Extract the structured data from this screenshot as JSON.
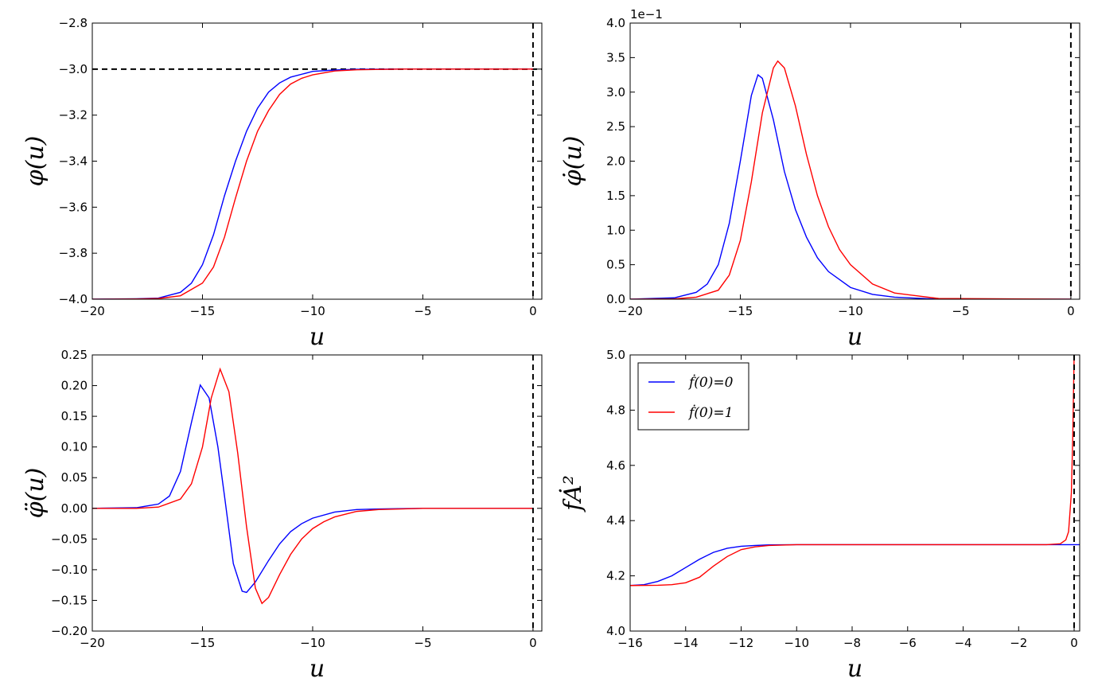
{
  "chart_data": [
    {
      "id": "a",
      "type": "line",
      "xlabel": "u",
      "ylabel": "φ(u)",
      "xlim": [
        -20,
        0.4
      ],
      "ylim": [
        -4.0,
        -2.8
      ],
      "xticks": [
        -20,
        -15,
        -10,
        -5,
        0
      ],
      "xtick_labels": [
        "−20",
        "−15",
        "−10",
        "−5",
        "0"
      ],
      "yticks": [
        -4.0,
        -3.8,
        -3.6,
        -3.4,
        -3.2,
        -3.0,
        -2.8
      ],
      "ytick_labels": [
        "−4.0",
        "−3.8",
        "−3.6",
        "−3.4",
        "−3.2",
        "−3.0",
        "−2.8"
      ],
      "series": [
        {
          "color": "#0000ff",
          "x": [
            -20,
            -18,
            -17,
            -16,
            -15.5,
            -15,
            -14.5,
            -14,
            -13.5,
            -13,
            -12.5,
            -12,
            -11.5,
            -11,
            -10,
            -9,
            -8,
            -6,
            -4,
            0
          ],
          "y": [
            -4.0,
            -3.998,
            -3.995,
            -3.97,
            -3.93,
            -3.85,
            -3.72,
            -3.55,
            -3.4,
            -3.27,
            -3.17,
            -3.1,
            -3.06,
            -3.035,
            -3.01,
            -3.004,
            -3.001,
            -3.0,
            -3.0,
            -3.0
          ]
        },
        {
          "color": "#ff0000",
          "x": [
            -20,
            -18,
            -17,
            -16,
            -15,
            -14.5,
            -14,
            -13.5,
            -13,
            -12.5,
            -12,
            -11.5,
            -11,
            -10.5,
            -10,
            -9,
            -8,
            -6,
            -4,
            0
          ],
          "y": [
            -4.0,
            -3.999,
            -3.997,
            -3.985,
            -3.93,
            -3.86,
            -3.73,
            -3.56,
            -3.4,
            -3.27,
            -3.18,
            -3.11,
            -3.065,
            -3.04,
            -3.025,
            -3.008,
            -3.003,
            -3.0,
            -3.0,
            -3.0
          ]
        }
      ],
      "hlines": [
        -3.0
      ],
      "vlines": [
        0
      ]
    },
    {
      "id": "b",
      "type": "line",
      "xlabel": "u",
      "ylabel": "φ̇(u)",
      "offset_text": "1e−1",
      "xlim": [
        -20,
        0.4
      ],
      "ylim": [
        0,
        4.0
      ],
      "xticks": [
        -20,
        -15,
        -10,
        -5,
        0
      ],
      "xtick_labels": [
        "−20",
        "−15",
        "−10",
        "−5",
        "0"
      ],
      "yticks": [
        0,
        0.5,
        1.0,
        1.5,
        2.0,
        2.5,
        3.0,
        3.5,
        4.0
      ],
      "ytick_labels": [
        "0.0",
        "0.5",
        "1.0",
        "1.5",
        "2.0",
        "2.5",
        "3.0",
        "3.5",
        "4.0"
      ],
      "series": [
        {
          "color": "#0000ff",
          "x": [
            -20,
            -18,
            -17,
            -16.5,
            -16,
            -15.5,
            -15,
            -14.5,
            -14.2,
            -14,
            -13.5,
            -13,
            -12.5,
            -12,
            -11.5,
            -11,
            -10,
            -9,
            -8,
            -6,
            0
          ],
          "y": [
            0,
            0.02,
            0.1,
            0.22,
            0.5,
            1.1,
            2.0,
            2.95,
            3.25,
            3.2,
            2.6,
            1.85,
            1.3,
            0.9,
            0.6,
            0.4,
            0.17,
            0.07,
            0.03,
            0,
            0
          ]
        },
        {
          "color": "#ff0000",
          "x": [
            -20,
            -18,
            -17,
            -16,
            -15.5,
            -15,
            -14.5,
            -14,
            -13.5,
            -13.3,
            -13,
            -12.5,
            -12,
            -11.5,
            -11,
            -10.5,
            -10,
            -9,
            -8,
            -6,
            0
          ],
          "y": [
            0,
            0.005,
            0.03,
            0.13,
            0.35,
            0.85,
            1.7,
            2.7,
            3.35,
            3.45,
            3.35,
            2.8,
            2.1,
            1.5,
            1.05,
            0.72,
            0.5,
            0.22,
            0.09,
            0.01,
            0
          ]
        }
      ],
      "hlines": [],
      "vlines": [
        0
      ]
    },
    {
      "id": "c",
      "type": "line",
      "xlabel": "u",
      "ylabel": "φ̈(u)",
      "xlim": [
        -20,
        0.4
      ],
      "ylim": [
        -0.2,
        0.25
      ],
      "xticks": [
        -20,
        -15,
        -10,
        -5,
        0
      ],
      "xtick_labels": [
        "−20",
        "−15",
        "−10",
        "−5",
        "0"
      ],
      "yticks": [
        -0.2,
        -0.15,
        -0.1,
        -0.05,
        0,
        0.05,
        0.1,
        0.15,
        0.2,
        0.25
      ],
      "ytick_labels": [
        "−0.20",
        "−0.15",
        "−0.10",
        "−0.05",
        "0.00",
        "0.05",
        "0.10",
        "0.15",
        "0.20",
        "0.25"
      ],
      "series": [
        {
          "color": "#0000ff",
          "x": [
            -20,
            -18,
            -17,
            -16.5,
            -16,
            -15.5,
            -15.1,
            -14.7,
            -14.3,
            -14,
            -13.6,
            -13.2,
            -13.0,
            -12.6,
            -12,
            -11.5,
            -11,
            -10.5,
            -10,
            -9,
            -8,
            -7,
            -5,
            0
          ],
          "y": [
            0,
            0.001,
            0.007,
            0.02,
            0.06,
            0.14,
            0.201,
            0.18,
            0.1,
            0.02,
            -0.09,
            -0.135,
            -0.137,
            -0.12,
            -0.085,
            -0.058,
            -0.038,
            -0.025,
            -0.016,
            -0.006,
            -0.002,
            -0.001,
            0,
            0
          ]
        },
        {
          "color": "#ff0000",
          "x": [
            -20,
            -18,
            -17,
            -16,
            -15.5,
            -15,
            -14.6,
            -14.2,
            -13.8,
            -13.4,
            -13,
            -12.6,
            -12.3,
            -12,
            -11.5,
            -11,
            -10.5,
            -10,
            -9.5,
            -9,
            -8,
            -7,
            -5,
            0
          ],
          "y": [
            0,
            0,
            0.002,
            0.015,
            0.04,
            0.1,
            0.18,
            0.227,
            0.19,
            0.09,
            -0.03,
            -0.13,
            -0.155,
            -0.145,
            -0.108,
            -0.075,
            -0.05,
            -0.033,
            -0.022,
            -0.014,
            -0.005,
            -0.002,
            0,
            0
          ]
        }
      ],
      "hlines": [],
      "vlines": [
        0
      ]
    },
    {
      "id": "d",
      "type": "line",
      "xlabel": "u",
      "ylabel": "fȦ²",
      "xlim": [
        -16,
        0.2
      ],
      "ylim": [
        4.0,
        5.0
      ],
      "xticks": [
        -16,
        -14,
        -12,
        -10,
        -8,
        -6,
        -4,
        -2,
        0
      ],
      "xtick_labels": [
        "−16",
        "−14",
        "−12",
        "−10",
        "−8",
        "−6",
        "−4",
        "−2",
        "0"
      ],
      "yticks": [
        4.0,
        4.2,
        4.4,
        4.6,
        4.8,
        5.0
      ],
      "ytick_labels": [
        "4.0",
        "4.2",
        "4.4",
        "4.6",
        "4.8",
        "5.0"
      ],
      "series": [
        {
          "name": "ḟ(0)=0",
          "color": "#0000ff",
          "x": [
            -16,
            -15.5,
            -15,
            -14.5,
            -14,
            -13.5,
            -13,
            -12.5,
            -12,
            -11.5,
            -11,
            -10,
            -8,
            -4,
            0,
            0.2
          ],
          "y": [
            4.165,
            4.168,
            4.18,
            4.2,
            4.23,
            4.26,
            4.285,
            4.3,
            4.307,
            4.31,
            4.312,
            4.313,
            4.313,
            4.313,
            4.313,
            4.313
          ]
        },
        {
          "name": "ḟ(0)=1",
          "color": "#ff0000",
          "x": [
            -16,
            -15,
            -14.5,
            -14,
            -13.5,
            -13,
            -12.5,
            -12,
            -11.5,
            -11,
            -10,
            -8,
            -4,
            -1,
            -0.5,
            -0.3,
            -0.2,
            -0.1,
            -0.05,
            0
          ],
          "y": [
            4.165,
            4.166,
            4.168,
            4.175,
            4.195,
            4.235,
            4.27,
            4.295,
            4.305,
            4.31,
            4.313,
            4.313,
            4.313,
            4.313,
            4.316,
            4.33,
            4.36,
            4.5,
            4.7,
            5.0
          ]
        }
      ],
      "hlines": [],
      "vlines": [
        0
      ],
      "legend": "top-left"
    }
  ]
}
